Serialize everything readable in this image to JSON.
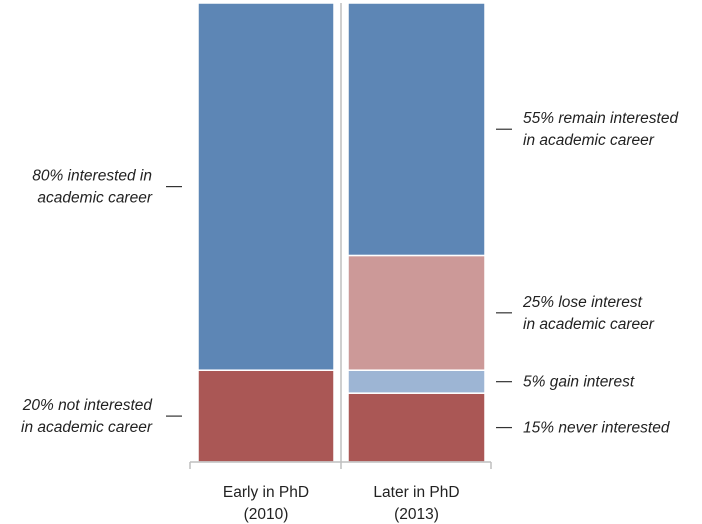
{
  "chart_data": {
    "type": "bar",
    "stacked": true,
    "normalized_percent": true,
    "categories": [
      {
        "label_line1": "Early in PhD",
        "label_line2": "(2010)"
      },
      {
        "label_line1": "Later in PhD",
        "label_line2": "(2013)"
      }
    ],
    "stacks": [
      {
        "category_index": 0,
        "segments": [
          {
            "value": 20,
            "color": "#AA5755",
            "label_lines": [
              "20% not interested",
              "in academic career"
            ]
          },
          {
            "value": 80,
            "color": "#5D86B5",
            "label_lines": [
              "80% interested in",
              "academic career"
            ]
          }
        ]
      },
      {
        "category_index": 1,
        "segments": [
          {
            "value": 15,
            "color": "#AA5755",
            "label_lines": [
              "15% never interested"
            ]
          },
          {
            "value": 5,
            "color": "#9DB5D4",
            "label_lines": [
              "5% gain interest"
            ]
          },
          {
            "value": 25,
            "color": "#CC9998",
            "label_lines": [
              "25% lose interest",
              "in academic career"
            ]
          },
          {
            "value": 55,
            "color": "#5D86B5",
            "label_lines": [
              "55% remain interested",
              "in academic career"
            ]
          }
        ]
      }
    ],
    "ylim": [
      0,
      100
    ],
    "grid": false,
    "legend": "none",
    "axis_color": "#BFBFBF"
  }
}
